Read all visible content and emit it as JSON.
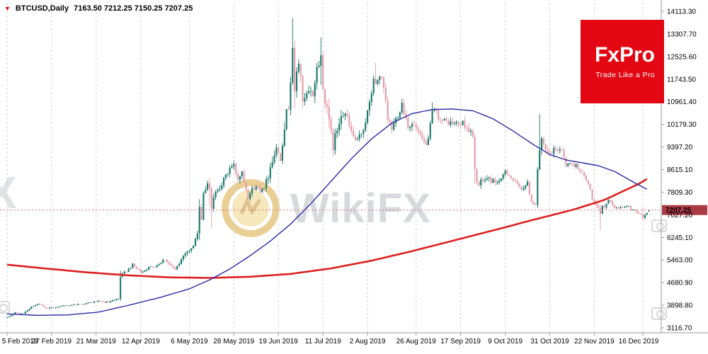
{
  "header": {
    "dropdown_icon": "▼",
    "symbol_label": "BTCUSD,Daily",
    "ohlc": "7163.50 7212.25 7150.25 7207.25"
  },
  "logo": {
    "name": "FxPro",
    "tagline": "Trade Like a Pro",
    "bg": "#e30613"
  },
  "watermarks": {
    "main_text": "WikiFX",
    "edge_text": "FX"
  },
  "colors": {
    "bull": "#17756a",
    "bear": "#e39aa5",
    "ma_fast": "#2929a3",
    "ma_slow": "#dd1f1f",
    "grid": "#d2d2d2",
    "price_line": "#d96a77",
    "price_box_bg": "#aa3a44",
    "axis_line": "#9a9a9a",
    "text": "#000000"
  },
  "chart_data": {
    "type": "candlestick",
    "symbol": "BTCUSD",
    "timeframe": "Daily",
    "title": "BTCUSD,Daily",
    "grid": "vertical-dashed",
    "legend_position": "none",
    "last_bar": {
      "open": 7163.5,
      "high": 7212.25,
      "low": 7150.25,
      "close": 7207.25
    },
    "current_price": 7207.25,
    "current_price_label": "7207.25",
    "y_axis": {
      "p_top": 14113.3,
      "p_bottom": 3116.7,
      "labels": [
        "14113.30",
        "13307.70",
        "12525.60",
        "11743.50",
        "10961.40",
        "10179.30",
        "9397.20",
        "8615.10",
        "7809.30",
        "7027.20",
        "6245.10",
        "5463.00",
        "4680.90",
        "3898.80",
        "3116.70"
      ]
    },
    "x_axis": {
      "labels": [
        "5 Feb 2019",
        "27 Feb 2019",
        "21 Mar 2019",
        "12 Apr 2019",
        "6 May 2019",
        "28 May 2019",
        "19 Jun 2019",
        "11 Jul 2019",
        "2 Aug 2019",
        "26 Aug 2019",
        "17 Sep 2019",
        "9 Oct 2019",
        "31 Oct 2019",
        "22 Nov 2019",
        "16 Dec 2019"
      ],
      "grid_days": [
        0,
        22,
        44,
        66,
        90,
        112,
        134,
        156,
        178,
        202,
        224,
        246,
        268,
        290,
        314
      ]
    },
    "series": {
      "close_anchors": [
        [
          0,
          3470
        ],
        [
          4,
          3650
        ],
        [
          8,
          3590
        ],
        [
          12,
          3860
        ],
        [
          16,
          3960
        ],
        [
          19,
          3780
        ],
        [
          24,
          3830
        ],
        [
          31,
          3905
        ],
        [
          38,
          3955
        ],
        [
          44,
          4030
        ],
        [
          50,
          4000
        ],
        [
          55,
          4105
        ],
        [
          56,
          4880
        ],
        [
          58,
          5050
        ],
        [
          62,
          5290
        ],
        [
          66,
          5060
        ],
        [
          69,
          5170
        ],
        [
          74,
          5300
        ],
        [
          78,
          5510
        ],
        [
          81,
          5270
        ],
        [
          83,
          5110
        ],
        [
          85,
          5350
        ],
        [
          88,
          5760
        ],
        [
          91,
          5830
        ],
        [
          94,
          6390
        ],
        [
          95,
          7210
        ],
        [
          96,
          6980
        ],
        [
          97,
          7820
        ],
        [
          99,
          8050
        ],
        [
          100,
          7890
        ],
        [
          101,
          7350
        ],
        [
          104,
          7990
        ],
        [
          107,
          8210
        ],
        [
          110,
          8680
        ],
        [
          112,
          8730
        ],
        [
          114,
          8310
        ],
        [
          116,
          8570
        ],
        [
          119,
          7700
        ],
        [
          122,
          8010
        ],
        [
          125,
          7940
        ],
        [
          128,
          8160
        ],
        [
          131,
          8990
        ],
        [
          133,
          9330
        ],
        [
          135,
          9080
        ],
        [
          137,
          10180
        ],
        [
          139,
          10860
        ],
        [
          140,
          11790
        ],
        [
          141,
          12910
        ],
        [
          142,
          11160
        ],
        [
          143,
          11980
        ],
        [
          144,
          12360
        ],
        [
          145,
          11890
        ],
        [
          146,
          10830
        ],
        [
          148,
          11160
        ],
        [
          151,
          11260
        ],
        [
          153,
          12110
        ],
        [
          155,
          12570
        ],
        [
          156,
          11360
        ],
        [
          158,
          10860
        ],
        [
          159,
          10210
        ],
        [
          161,
          9430
        ],
        [
          162,
          9710
        ],
        [
          165,
          10650
        ],
        [
          167,
          10560
        ],
        [
          170,
          9900
        ],
        [
          173,
          9520
        ],
        [
          176,
          10090
        ],
        [
          179,
          10820
        ],
        [
          181,
          11810
        ],
        [
          182,
          11480
        ],
        [
          184,
          11960
        ],
        [
          186,
          11360
        ],
        [
          188,
          10320
        ],
        [
          190,
          10040
        ],
        [
          192,
          10360
        ],
        [
          195,
          10920
        ],
        [
          198,
          10160
        ],
        [
          201,
          10140
        ],
        [
          204,
          9730
        ],
        [
          206,
          9520
        ],
        [
          208,
          9600
        ],
        [
          210,
          10620
        ],
        [
          212,
          10590
        ],
        [
          214,
          10320
        ],
        [
          218,
          10260
        ],
        [
          222,
          10190
        ],
        [
          226,
          10210
        ],
        [
          229,
          9880
        ],
        [
          230,
          9700
        ],
        [
          231,
          8530
        ],
        [
          233,
          8070
        ],
        [
          235,
          8230
        ],
        [
          237,
          8300
        ],
        [
          241,
          8190
        ],
        [
          244,
          8220
        ],
        [
          246,
          8600
        ],
        [
          249,
          8330
        ],
        [
          252,
          8060
        ],
        [
          254,
          7980
        ],
        [
          257,
          8110
        ],
        [
          259,
          7520
        ],
        [
          261,
          7430
        ],
        [
          262,
          8660
        ],
        [
          263,
          9240
        ],
        [
          264,
          9550
        ],
        [
          266,
          9210
        ],
        [
          268,
          9150
        ],
        [
          271,
          9300
        ],
        [
          274,
          9340
        ],
        [
          276,
          8780
        ],
        [
          279,
          8810
        ],
        [
          282,
          8710
        ],
        [
          284,
          8470
        ],
        [
          287,
          8110
        ],
        [
          289,
          7630
        ],
        [
          291,
          7290
        ],
        [
          293,
          7120
        ],
        [
          294,
          7310
        ],
        [
          296,
          7430
        ],
        [
          298,
          7560
        ],
        [
          300,
          7330
        ],
        [
          303,
          7260
        ],
        [
          306,
          7360
        ],
        [
          308,
          7240
        ],
        [
          310,
          7200
        ],
        [
          312,
          7110
        ],
        [
          314,
          6940
        ],
        [
          316,
          7130
        ],
        [
          317,
          7207.25
        ]
      ],
      "vol_anchors": [
        [
          0,
          0.012
        ],
        [
          40,
          0.012
        ],
        [
          55,
          0.02
        ],
        [
          70,
          0.018
        ],
        [
          90,
          0.028
        ],
        [
          100,
          0.034
        ],
        [
          120,
          0.028
        ],
        [
          140,
          0.042
        ],
        [
          160,
          0.04
        ],
        [
          180,
          0.034
        ],
        [
          200,
          0.026
        ],
        [
          215,
          0.022
        ],
        [
          231,
          0.034
        ],
        [
          245,
          0.02
        ],
        [
          258,
          0.022
        ],
        [
          263,
          0.036
        ],
        [
          275,
          0.02
        ],
        [
          290,
          0.022
        ],
        [
          300,
          0.016
        ],
        [
          317,
          0.01
        ]
      ],
      "wick_overrides": [
        [
          56,
          5105,
          4052
        ],
        [
          95,
          7585,
          6178
        ],
        [
          100,
          8320,
          7360
        ],
        [
          101,
          7470,
          6600
        ],
        [
          110,
          8760,
          null
        ],
        [
          131,
          9065,
          null
        ],
        [
          137,
          10250,
          null
        ],
        [
          141,
          13880,
          11600
        ],
        [
          142,
          12000,
          10750
        ],
        [
          144,
          12445,
          null
        ],
        [
          153,
          12320,
          null
        ],
        [
          155,
          13200,
          11560
        ],
        [
          159,
          11085,
          10050
        ],
        [
          161,
          9950,
          9080
        ],
        [
          182,
          12325,
          null
        ],
        [
          190,
          null,
          9870
        ],
        [
          210,
          10950,
          null
        ],
        [
          231,
          9780,
          8120
        ],
        [
          262,
          8700,
          7390
        ],
        [
          263,
          10540,
          null
        ],
        [
          293,
          7400,
          6515
        ],
        [
          314,
          7280,
          6850
        ]
      ],
      "ma_fast_anchors": [
        [
          0,
          3600
        ],
        [
          15,
          3550
        ],
        [
          30,
          3565
        ],
        [
          45,
          3660
        ],
        [
          60,
          3900
        ],
        [
          75,
          4160
        ],
        [
          90,
          4470
        ],
        [
          100,
          4780
        ],
        [
          110,
          5160
        ],
        [
          120,
          5620
        ],
        [
          130,
          6130
        ],
        [
          140,
          6720
        ],
        [
          150,
          7430
        ],
        [
          160,
          8210
        ],
        [
          170,
          8990
        ],
        [
          180,
          9680
        ],
        [
          190,
          10230
        ],
        [
          200,
          10560
        ],
        [
          210,
          10700
        ],
        [
          220,
          10720
        ],
        [
          230,
          10660
        ],
        [
          240,
          10380
        ],
        [
          250,
          9950
        ],
        [
          260,
          9480
        ],
        [
          268,
          9140
        ],
        [
          276,
          8950
        ],
        [
          284,
          8850
        ],
        [
          292,
          8750
        ],
        [
          300,
          8550
        ],
        [
          308,
          8230
        ],
        [
          317,
          7890
        ]
      ],
      "ma_slow_anchors": [
        [
          0,
          5310
        ],
        [
          20,
          5170
        ],
        [
          40,
          5040
        ],
        [
          60,
          4940
        ],
        [
          80,
          4870
        ],
        [
          100,
          4850
        ],
        [
          120,
          4890
        ],
        [
          140,
          4990
        ],
        [
          160,
          5180
        ],
        [
          180,
          5450
        ],
        [
          200,
          5780
        ],
        [
          220,
          6140
        ],
        [
          240,
          6500
        ],
        [
          260,
          6870
        ],
        [
          280,
          7230
        ],
        [
          295,
          7560
        ],
        [
          305,
          7890
        ],
        [
          312,
          8120
        ],
        [
          317,
          8330
        ]
      ]
    }
  }
}
